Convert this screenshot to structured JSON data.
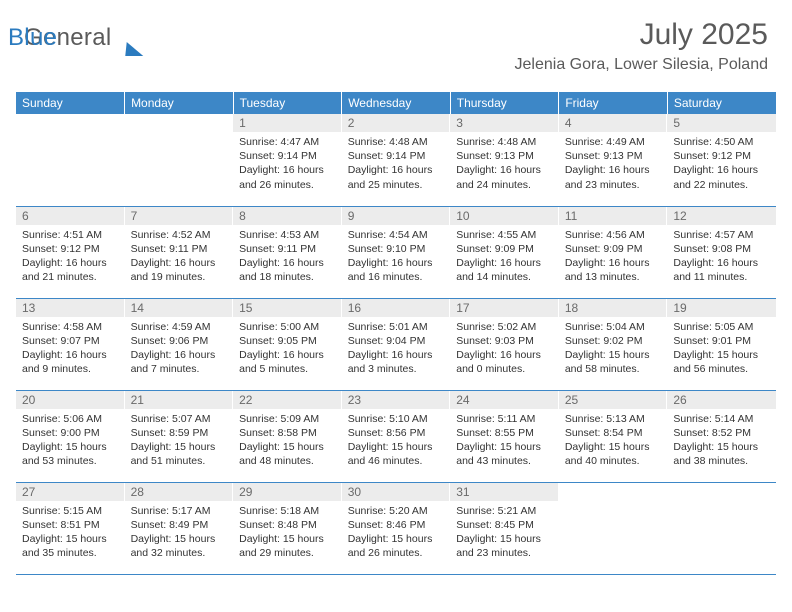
{
  "logo": {
    "text1": "General",
    "text2": "Blue"
  },
  "title": "July 2025",
  "subtitle": "Jelenia Gora, Lower Silesia, Poland",
  "colors": {
    "header_bg": "#3d87c7",
    "header_text": "#ffffff",
    "daynum_bg": "#ececec",
    "daynum_text": "#6a6a6a",
    "body_text": "#333333",
    "rule": "#3d87c7",
    "logo_gray": "#5a5a5a",
    "logo_blue": "#2b7bbf",
    "background": "#ffffff"
  },
  "day_headers": [
    "Sunday",
    "Monday",
    "Tuesday",
    "Wednesday",
    "Thursday",
    "Friday",
    "Saturday"
  ],
  "weeks": [
    [
      {
        "empty": true
      },
      {
        "empty": true
      },
      {
        "num": "1",
        "sunrise": "4:47 AM",
        "sunset": "9:14 PM",
        "daylight": "16 hours and 26 minutes."
      },
      {
        "num": "2",
        "sunrise": "4:48 AM",
        "sunset": "9:14 PM",
        "daylight": "16 hours and 25 minutes."
      },
      {
        "num": "3",
        "sunrise": "4:48 AM",
        "sunset": "9:13 PM",
        "daylight": "16 hours and 24 minutes."
      },
      {
        "num": "4",
        "sunrise": "4:49 AM",
        "sunset": "9:13 PM",
        "daylight": "16 hours and 23 minutes."
      },
      {
        "num": "5",
        "sunrise": "4:50 AM",
        "sunset": "9:12 PM",
        "daylight": "16 hours and 22 minutes."
      }
    ],
    [
      {
        "num": "6",
        "sunrise": "4:51 AM",
        "sunset": "9:12 PM",
        "daylight": "16 hours and 21 minutes."
      },
      {
        "num": "7",
        "sunrise": "4:52 AM",
        "sunset": "9:11 PM",
        "daylight": "16 hours and 19 minutes."
      },
      {
        "num": "8",
        "sunrise": "4:53 AM",
        "sunset": "9:11 PM",
        "daylight": "16 hours and 18 minutes."
      },
      {
        "num": "9",
        "sunrise": "4:54 AM",
        "sunset": "9:10 PM",
        "daylight": "16 hours and 16 minutes."
      },
      {
        "num": "10",
        "sunrise": "4:55 AM",
        "sunset": "9:09 PM",
        "daylight": "16 hours and 14 minutes."
      },
      {
        "num": "11",
        "sunrise": "4:56 AM",
        "sunset": "9:09 PM",
        "daylight": "16 hours and 13 minutes."
      },
      {
        "num": "12",
        "sunrise": "4:57 AM",
        "sunset": "9:08 PM",
        "daylight": "16 hours and 11 minutes."
      }
    ],
    [
      {
        "num": "13",
        "sunrise": "4:58 AM",
        "sunset": "9:07 PM",
        "daylight": "16 hours and 9 minutes."
      },
      {
        "num": "14",
        "sunrise": "4:59 AM",
        "sunset": "9:06 PM",
        "daylight": "16 hours and 7 minutes."
      },
      {
        "num": "15",
        "sunrise": "5:00 AM",
        "sunset": "9:05 PM",
        "daylight": "16 hours and 5 minutes."
      },
      {
        "num": "16",
        "sunrise": "5:01 AM",
        "sunset": "9:04 PM",
        "daylight": "16 hours and 3 minutes."
      },
      {
        "num": "17",
        "sunrise": "5:02 AM",
        "sunset": "9:03 PM",
        "daylight": "16 hours and 0 minutes."
      },
      {
        "num": "18",
        "sunrise": "5:04 AM",
        "sunset": "9:02 PM",
        "daylight": "15 hours and 58 minutes."
      },
      {
        "num": "19",
        "sunrise": "5:05 AM",
        "sunset": "9:01 PM",
        "daylight": "15 hours and 56 minutes."
      }
    ],
    [
      {
        "num": "20",
        "sunrise": "5:06 AM",
        "sunset": "9:00 PM",
        "daylight": "15 hours and 53 minutes."
      },
      {
        "num": "21",
        "sunrise": "5:07 AM",
        "sunset": "8:59 PM",
        "daylight": "15 hours and 51 minutes."
      },
      {
        "num": "22",
        "sunrise": "5:09 AM",
        "sunset": "8:58 PM",
        "daylight": "15 hours and 48 minutes."
      },
      {
        "num": "23",
        "sunrise": "5:10 AM",
        "sunset": "8:56 PM",
        "daylight": "15 hours and 46 minutes."
      },
      {
        "num": "24",
        "sunrise": "5:11 AM",
        "sunset": "8:55 PM",
        "daylight": "15 hours and 43 minutes."
      },
      {
        "num": "25",
        "sunrise": "5:13 AM",
        "sunset": "8:54 PM",
        "daylight": "15 hours and 40 minutes."
      },
      {
        "num": "26",
        "sunrise": "5:14 AM",
        "sunset": "8:52 PM",
        "daylight": "15 hours and 38 minutes."
      }
    ],
    [
      {
        "num": "27",
        "sunrise": "5:15 AM",
        "sunset": "8:51 PM",
        "daylight": "15 hours and 35 minutes."
      },
      {
        "num": "28",
        "sunrise": "5:17 AM",
        "sunset": "8:49 PM",
        "daylight": "15 hours and 32 minutes."
      },
      {
        "num": "29",
        "sunrise": "5:18 AM",
        "sunset": "8:48 PM",
        "daylight": "15 hours and 29 minutes."
      },
      {
        "num": "30",
        "sunrise": "5:20 AM",
        "sunset": "8:46 PM",
        "daylight": "15 hours and 26 minutes."
      },
      {
        "num": "31",
        "sunrise": "5:21 AM",
        "sunset": "8:45 PM",
        "daylight": "15 hours and 23 minutes."
      },
      {
        "empty": true
      },
      {
        "empty": true
      }
    ]
  ],
  "labels": {
    "sunrise": "Sunrise:",
    "sunset": "Sunset:",
    "daylight": "Daylight:"
  }
}
